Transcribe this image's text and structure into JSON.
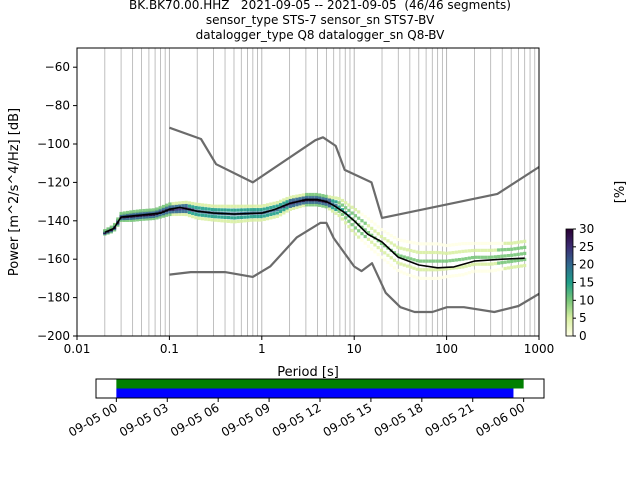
{
  "title": {
    "line1": "BK.BK70.00.HHZ   2021-09-05 -- 2021-09-05  (46/46 segments)",
    "line2": "sensor_type STS-7 sensor_sn STS7-BV",
    "line3": "datalogger_type Q8 datalogger_sn Q8-BV"
  },
  "chart_data": [
    {
      "type": "heatmap",
      "xlabel": "Period [s]",
      "ylabel": "Power [m^2/s^4/Hz] [dB]",
      "x_scale": "log",
      "xlim": [
        0.01,
        1000
      ],
      "ylim": [
        -200,
        -50
      ],
      "x_ticks": [
        0.01,
        0.1,
        1,
        10,
        100,
        1000
      ],
      "x_tick_labels": [
        "0.01",
        "0.1",
        "1",
        "10",
        "100",
        "1000"
      ],
      "y_ticks": [
        -200,
        -180,
        -160,
        -140,
        -120,
        -100,
        -80,
        -60
      ],
      "y_tick_labels": [
        "−200",
        "−180",
        "−160",
        "−140",
        "−120",
        "−100",
        "−80",
        "−60"
      ],
      "grid": "x major+minor",
      "colorbar": {
        "label": "[%]",
        "range": [
          0,
          30
        ],
        "ticks": [
          0,
          5,
          10,
          15,
          20,
          25,
          30
        ],
        "colors": [
          "#ffffe5",
          "#d9f0a3",
          "#78c679",
          "#1f9e89",
          "#31688e",
          "#3b2c72",
          "#2a0033"
        ]
      },
      "colors": {
        "noise_model": "#6b6b6b",
        "mode": "#000000"
      },
      "nhnm": {
        "x": [
          0.1,
          0.22,
          0.32,
          0.8,
          3.8,
          4.6,
          6.3,
          7.9,
          15.4,
          20,
          354.8,
          1000
        ],
        "y": [
          -91.5,
          -97.4,
          -110.5,
          -120,
          -98,
          -96.5,
          -101,
          -113.5,
          -120,
          -138.5,
          -126,
          -112
        ]
      },
      "nlnm": {
        "x": [
          0.1,
          0.17,
          0.4,
          0.8,
          1.24,
          2.4,
          4.3,
          5,
          6,
          10,
          12,
          15.6,
          21.9,
          31.6,
          45,
          70,
          101,
          154,
          328,
          600,
          1000
        ],
        "y": [
          -168,
          -166.7,
          -166.7,
          -169.2,
          -163.7,
          -148.6,
          -141.1,
          -141.1,
          -149,
          -163.8,
          -166.2,
          -162.1,
          -177.5,
          -185,
          -187.5,
          -187.5,
          -185,
          -185,
          -187.5,
          -184.4,
          -178
        ]
      },
      "mode": {
        "x": [
          0.02,
          0.025,
          0.03,
          0.05,
          0.08,
          0.1,
          0.13,
          0.2,
          0.3,
          0.5,
          1,
          1.4,
          2,
          3,
          4,
          5,
          6,
          8,
          10,
          14,
          20,
          30,
          50,
          80,
          120,
          200,
          400,
          700
        ],
        "y": [
          -146,
          -144,
          -138,
          -137,
          -136,
          -134,
          -133,
          -135,
          -136,
          -136.5,
          -136,
          -134,
          -131,
          -129,
          -129,
          -130,
          -132,
          -136,
          -140,
          -147,
          -151,
          -159,
          -163,
          -164.5,
          -164,
          -161,
          -160,
          -159.5
        ]
      },
      "density": {
        "x": [
          0.02,
          0.025,
          0.03,
          0.04,
          0.05,
          0.07,
          0.1,
          0.15,
          0.2,
          0.3,
          0.5,
          0.8,
          1,
          1.5,
          2,
          3,
          4,
          5,
          7,
          10,
          15,
          20,
          30,
          50,
          80,
          100,
          150,
          200,
          300,
          500,
          700
        ],
        "center": [
          -146,
          -144,
          -138,
          -137.5,
          -137,
          -136.5,
          -134,
          -133.5,
          -135,
          -136,
          -136.5,
          -136,
          -136,
          -134,
          -131,
          -129,
          -129,
          -130,
          -133,
          -140,
          -147,
          -152,
          -158,
          -161,
          -161,
          -161,
          -160,
          -159,
          -159,
          -158,
          -157
        ],
        "spread": [
          1,
          1.5,
          2,
          2.5,
          2.5,
          2.5,
          3,
          3.5,
          4,
          4,
          4.5,
          4,
          4,
          4,
          3.5,
          3,
          3,
          3,
          5,
          7,
          8,
          8,
          9,
          10,
          10,
          9,
          9,
          8,
          8,
          7,
          7
        ]
      }
    },
    {
      "type": "timeline",
      "x_tick_labels": [
        "09-05 00",
        "09-05 03",
        "09-05 06",
        "09-05 09",
        "09-05 12",
        "09-05 15",
        "09-05 18",
        "09-05 21",
        "09-06 00"
      ],
      "x_tick_hours": [
        0,
        3,
        6,
        9,
        12,
        15,
        18,
        21,
        24
      ],
      "xlim_hours": [
        -1.2,
        25.2
      ],
      "bars": [
        {
          "start_hour": 0,
          "end_hour": 24,
          "color": "#008000"
        },
        {
          "start_hour": 0,
          "end_hour": 23.4,
          "color": "#0000ff"
        }
      ]
    }
  ]
}
